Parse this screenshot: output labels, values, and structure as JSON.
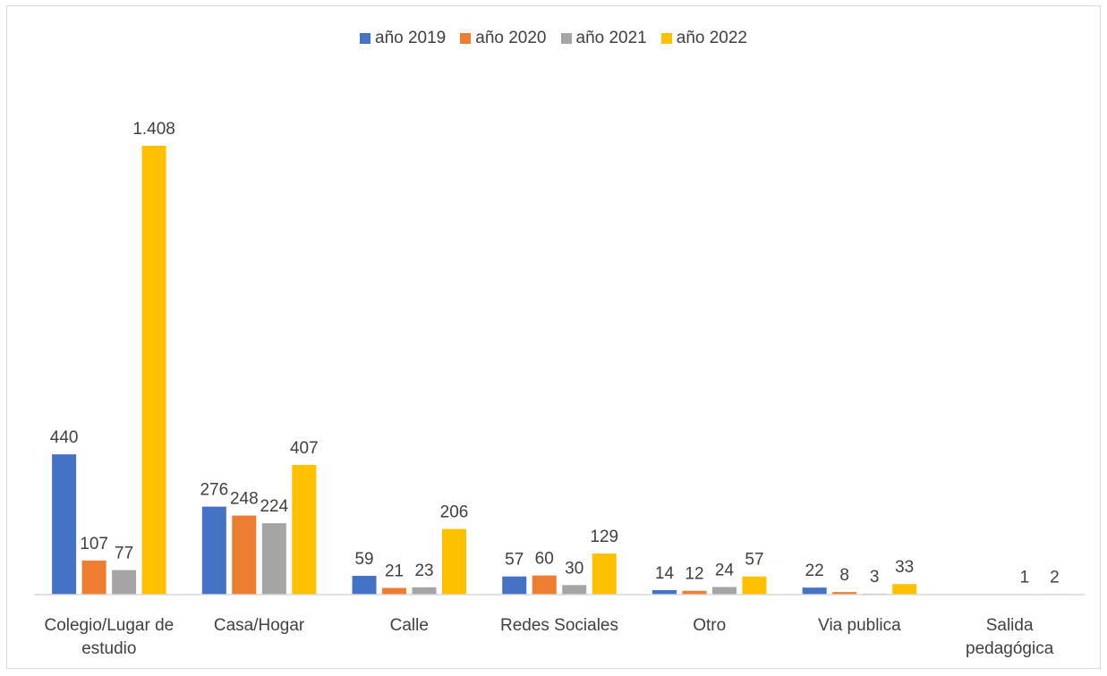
{
  "chart_data": {
    "type": "bar",
    "title": "",
    "xlabel": "",
    "ylabel": "",
    "categories": [
      [
        "Colegio/Lugar de",
        "estudio"
      ],
      [
        "Casa/Hogar"
      ],
      [
        "Calle"
      ],
      [
        "Redes Sociales"
      ],
      [
        "Otro"
      ],
      [
        "Via publica"
      ],
      [
        "Salida",
        "pedagógica"
      ]
    ],
    "series": [
      {
        "name": "año 2019",
        "color": "#4472c4",
        "values": [
          440,
          276,
          59,
          57,
          14,
          22,
          null
        ],
        "labels": [
          "440",
          "276",
          "59",
          "57",
          "14",
          "22",
          ""
        ]
      },
      {
        "name": "año 2020",
        "color": "#ed7d31",
        "values": [
          107,
          248,
          21,
          60,
          12,
          8,
          null
        ],
        "labels": [
          "107",
          "248",
          "21",
          "60",
          "12",
          "8",
          ""
        ]
      },
      {
        "name": "año 2021",
        "color": "#a5a5a5",
        "values": [
          77,
          224,
          23,
          30,
          24,
          3,
          1
        ],
        "labels": [
          "77",
          "224",
          "23",
          "30",
          "24",
          "3",
          "1"
        ]
      },
      {
        "name": "año 2022",
        "color": "#ffc000",
        "values": [
          1408,
          407,
          206,
          129,
          57,
          33,
          2
        ],
        "labels": [
          "1.408",
          "407",
          "206",
          "129",
          "57",
          "33",
          "2"
        ]
      }
    ],
    "ylim": [
      0,
      1408
    ],
    "grid": false,
    "legend": "top-center"
  }
}
